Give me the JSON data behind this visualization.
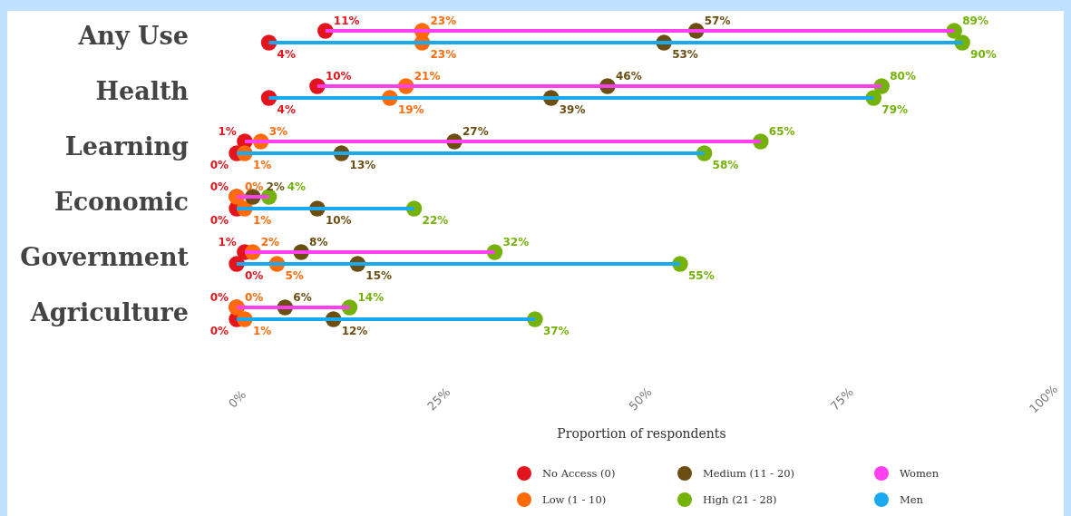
{
  "chart_data": {
    "type": "scatter",
    "orientation": "horizontal",
    "xlabel": "Proportion of respondents",
    "categories": [
      "Any Use",
      "Health",
      "Learning",
      "Economic",
      "Government",
      "Agriculture"
    ],
    "xlim": [
      0,
      100
    ],
    "xticks": [
      {
        "value": 0,
        "label": "0%"
      },
      {
        "value": 25,
        "label": "25%"
      },
      {
        "value": 50,
        "label": "50%"
      },
      {
        "value": 75,
        "label": "75%"
      },
      {
        "value": 100,
        "label": "100%"
      }
    ],
    "legend": "bottom",
    "marker": "circle",
    "series": [
      {
        "name": "No Access (0)",
        "color": "#e3141c",
        "values": [
          11,
          10,
          1,
          0,
          1,
          0
        ],
        "value_labels": [
          "11%",
          "10%",
          "1%",
          "0%",
          "1%",
          "0%"
        ]
      },
      {
        "color": "#e3141c",
        "values": [
          4,
          4,
          0,
          0,
          0,
          0
        ],
        "value_labels": [
          "4%",
          "4%",
          "0%",
          "0%",
          "0%",
          "0%"
        ]
      },
      {
        "name": "Low (1 - 10)",
        "color": "#ff6a0a",
        "values": [
          23,
          21,
          3,
          0,
          2,
          0
        ],
        "value_labels": [
          "23%",
          "21%",
          "3%",
          "0%",
          "2%",
          "0%"
        ]
      },
      {
        "color": "#ff6a0a",
        "values": [
          23,
          19,
          1,
          1,
          5,
          1
        ],
        "value_labels": [
          "23%",
          "19%",
          "1%",
          "1%",
          "5%",
          "1%"
        ]
      },
      {
        "name": "Medium (11 - 20)",
        "color": "#6b4e12",
        "values": [
          57,
          46,
          27,
          2,
          8,
          6
        ],
        "value_labels": [
          "57%",
          "46%",
          "27%",
          "2%",
          "8%",
          "6%"
        ]
      },
      {
        "color": "#6b4e12",
        "values": [
          53,
          39,
          13,
          10,
          15,
          12
        ],
        "value_labels": [
          "53%",
          "39%",
          "13%",
          "10%",
          "15%",
          "12%"
        ]
      },
      {
        "name": "High (21 - 28)",
        "color": "#74b20a",
        "values": [
          89,
          80,
          65,
          4,
          32,
          14
        ],
        "value_labels": [
          "89%",
          "80%",
          "65%",
          "4%",
          "32%",
          "14%"
        ]
      },
      {
        "color": "#74b20a",
        "values": [
          90,
          79,
          58,
          22,
          55,
          37
        ],
        "value_labels": [
          "90%",
          "79%",
          "58%",
          "22%",
          "55%",
          "37%"
        ]
      },
      {
        "name": "Women",
        "type": "bar",
        "color": "#ff3ff0",
        "base": [
          11,
          10,
          1,
          0,
          1,
          0
        ],
        "values": [
          78,
          70,
          64,
          4,
          31,
          14
        ]
      },
      {
        "name": "Men",
        "type": "bar",
        "color": "#19a9ee",
        "base": [
          4,
          4,
          0,
          0,
          0,
          0
        ],
        "values": [
          86,
          75,
          58,
          22,
          55,
          37
        ]
      }
    ]
  }
}
